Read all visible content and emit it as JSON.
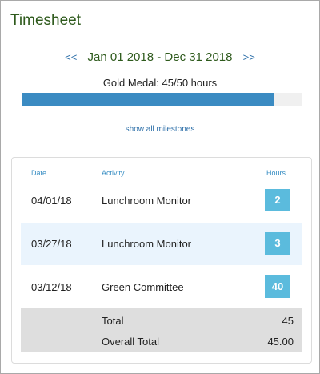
{
  "header": {
    "title": "Timesheet"
  },
  "date_nav": {
    "prev_label": "<<",
    "range": "Jan 01 2018 - Dec 31 2018",
    "next_label": ">>"
  },
  "progress": {
    "label": "Gold Medal: 45/50 hours",
    "fraction": 0.9,
    "fill_color": "#3b8bc2"
  },
  "milestones_link": "show all milestones",
  "table": {
    "columns": {
      "date": "Date",
      "activity": "Activity",
      "hours": "Hours"
    },
    "rows": [
      {
        "date": "04/01/18",
        "activity": "Lunchroom Monitor",
        "hours": "2"
      },
      {
        "date": "03/27/18",
        "activity": "Lunchroom Monitor",
        "hours": "3"
      },
      {
        "date": "03/12/18",
        "activity": "Green Committee",
        "hours": "40"
      }
    ],
    "badge_color": "#5bbbdd",
    "total": {
      "label": "Total",
      "value": "45"
    },
    "overall_total": {
      "label": "Overall Total",
      "value": "45.00"
    }
  }
}
